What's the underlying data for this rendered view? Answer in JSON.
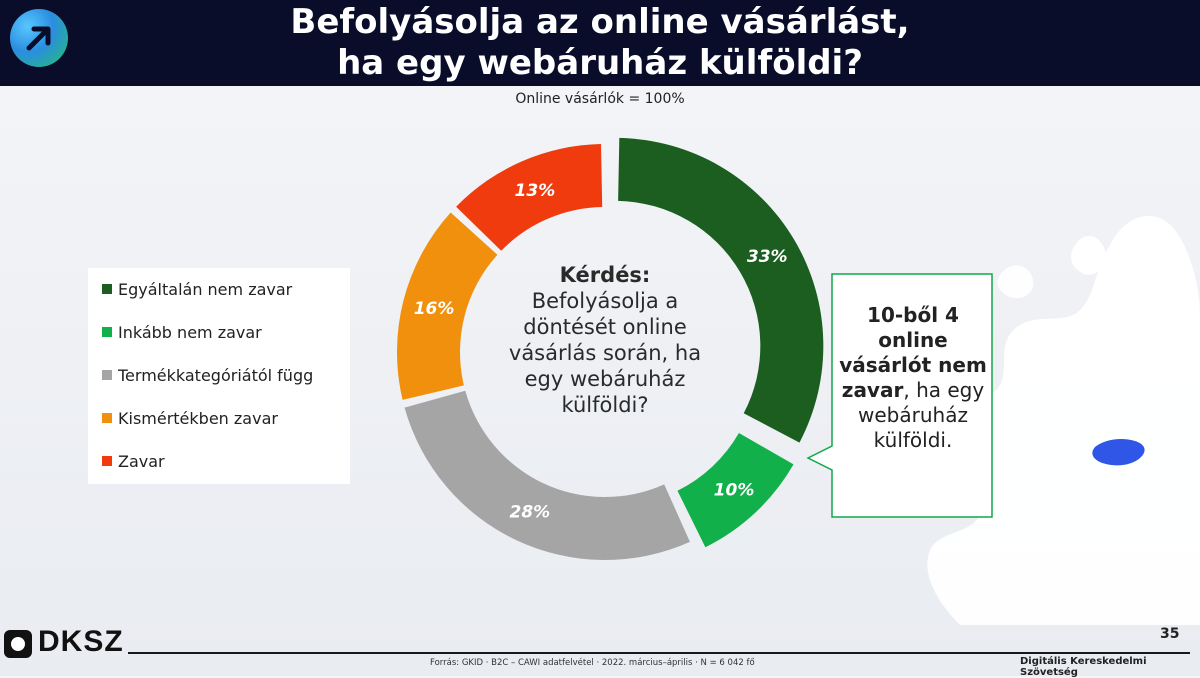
{
  "header": {
    "title_line1": "Befolyásolja az online vásárlást,",
    "title_line2": "ha egy webáruház külföldi?"
  },
  "subtitle": "Online vásárlók = 100%",
  "center": {
    "question_label": "Kérdés:",
    "question_text": "Befolyásolja a döntését online vásárlás során, ha egy webáruház külföldi?"
  },
  "chart_data": {
    "type": "pie",
    "donut": true,
    "categories": [
      "Egyáltalán nem zavar",
      "Inkább nem zavar",
      "Termékkategóriától függ",
      "Kismértékben zavar",
      "Zavar"
    ],
    "values": [
      33,
      10,
      28,
      16,
      13
    ],
    "labels": [
      "33%",
      "10%",
      "28%",
      "16%",
      "13%"
    ],
    "colors": [
      "#1b5e20",
      "#12b04a",
      "#a5a5a5",
      "#f0900c",
      "#ef3b0e"
    ],
    "exploded": [
      true,
      true,
      false,
      false,
      false
    ],
    "legend_position": "left"
  },
  "callout": {
    "bold_text": "10-ből 4 online vásárlót nem zavar",
    "comma": ",",
    "rest_text": "ha egy webáruház külföldi.",
    "border_color": "#12a84a"
  },
  "map": {
    "highlight_color": "#2f56e6"
  },
  "footer": {
    "logo_text": "DKSZ",
    "page_number": "35",
    "source": "Forrás: GKID · B2C – CAWI adatfelvétel · 2022. március–április · N = 6 042 fő",
    "organization": "Digitális Kereskedelmi Szövetség"
  }
}
